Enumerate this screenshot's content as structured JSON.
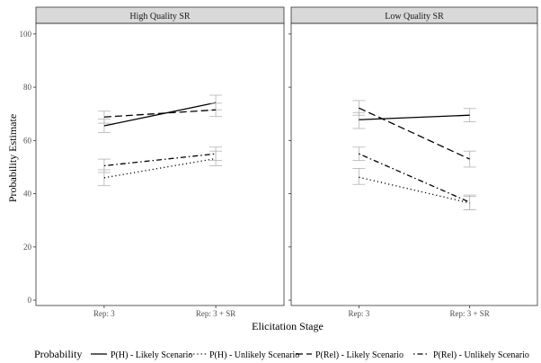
{
  "chart_data": {
    "type": "line",
    "xlabel": "Elicitation Stage",
    "ylabel": "Probability Estimate",
    "categories": [
      "Rep: 3",
      "Rep: 3 + SR"
    ],
    "ylim": [
      -2,
      104
    ],
    "yticks": [
      0,
      20,
      40,
      60,
      80,
      100
    ],
    "grid": false,
    "legend": {
      "title": "Probability",
      "placement": "bottom",
      "entries": [
        "P(H) - Likely Scenario",
        "P(H) - Unlikely Scenario",
        "P(Rel) - Likely Scenario",
        "P(Rel) - Unlikely Scenario"
      ]
    },
    "panels": [
      {
        "title": "High Quality SR",
        "series": [
          {
            "name": "P(H) - Likely Scenario",
            "dash": "solid",
            "values": [
              65.5,
              74.2
            ],
            "err": [
              [
                63.0,
                68.0
              ],
              [
                71.5,
                77.0
              ]
            ]
          },
          {
            "name": "P(H) - Unlikely Scenario",
            "dash": "dotted",
            "values": [
              46.0,
              53.2
            ],
            "err": [
              [
                43.0,
                49.0
              ],
              [
                50.5,
                56.0
              ]
            ]
          },
          {
            "name": "P(Rel) - Likely Scenario",
            "dash": "dashed",
            "values": [
              68.8,
              71.5
            ],
            "err": [
              [
                66.5,
                71.0
              ],
              [
                69.0,
                74.0
              ]
            ]
          },
          {
            "name": "P(Rel) - Unlikely Scenario",
            "dash": "dotdash",
            "values": [
              50.5,
              55.0
            ],
            "err": [
              [
                48.0,
                53.0
              ],
              [
                52.5,
                57.5
              ]
            ]
          }
        ]
      },
      {
        "title": "Low Quality SR",
        "series": [
          {
            "name": "P(H) - Likely Scenario",
            "dash": "solid",
            "values": [
              67.8,
              69.5
            ],
            "err": [
              [
                64.5,
                70.5
              ],
              [
                67.0,
                72.0
              ]
            ]
          },
          {
            "name": "P(H) - Unlikely Scenario",
            "dash": "dotted",
            "values": [
              46.2,
              36.5
            ],
            "err": [
              [
                43.5,
                49.5
              ],
              [
                34.0,
                39.0
              ]
            ]
          },
          {
            "name": "P(Rel) - Likely Scenario",
            "dash": "dashed",
            "values": [
              72.2,
              53.0
            ],
            "err": [
              [
                69.5,
                75.0
              ],
              [
                50.0,
                56.0
              ]
            ]
          },
          {
            "name": "P(Rel) - Unlikely Scenario",
            "dash": "dotdash",
            "values": [
              55.0,
              36.8
            ],
            "err": [
              [
                52.5,
                57.5
              ],
              [
                34.0,
                39.5
              ]
            ]
          }
        ]
      }
    ]
  }
}
